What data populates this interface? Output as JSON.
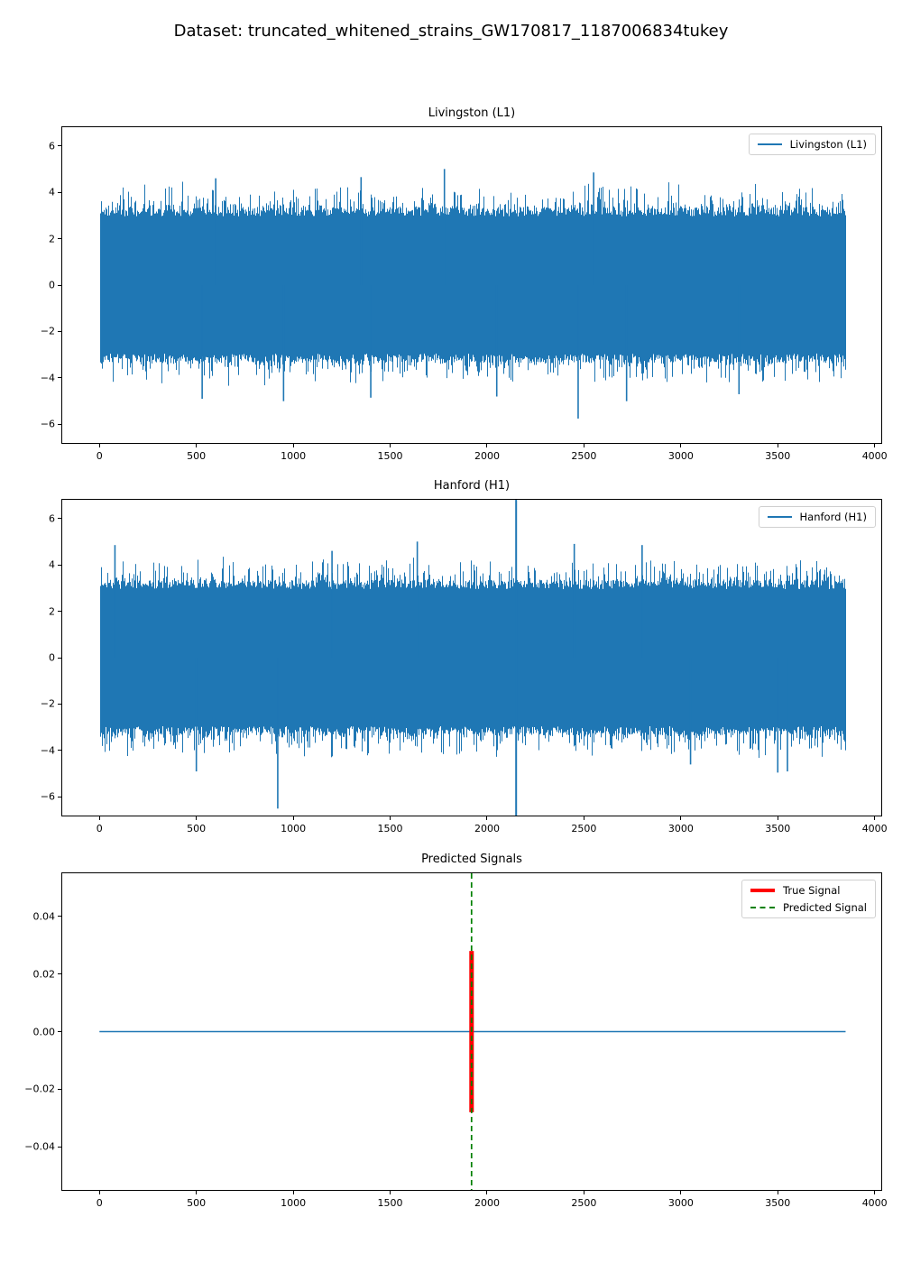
{
  "figure": {
    "title": "Dataset: truncated_whitened_strains_GW170817_1187006834tukey",
    "background": "#ffffff"
  },
  "colors": {
    "strain_blue": "#1f77b4",
    "true_signal_red": "#ff0000",
    "predicted_signal_green": "#008000",
    "axes_border": "#000000",
    "legend_border": "#d0d0d0"
  },
  "chart_data": [
    {
      "type": "line",
      "title": "Livingston (L1)",
      "xlabel": "",
      "ylabel": "",
      "xlim": [
        -192,
        4034
      ],
      "ylim": [
        -6.8,
        6.8
      ],
      "x_ticks": [
        0,
        500,
        1000,
        1500,
        2000,
        2500,
        3000,
        3500,
        4000
      ],
      "x_tick_labels": [
        "0",
        "500",
        "1000",
        "1500",
        "2000",
        "2500",
        "3000",
        "3500",
        "4000"
      ],
      "y_ticks": [
        6,
        4,
        2,
        0,
        -2,
        -4,
        -6
      ],
      "y_tick_labels": [
        "6",
        "4",
        "2",
        "0",
        "−2",
        "−4",
        "−6"
      ],
      "grid": false,
      "legend": {
        "position": "upper right",
        "entries": [
          "Livingston (L1)"
        ]
      },
      "series": [
        {
          "name": "Livingston (L1)",
          "color": "#1f77b4",
          "kind": "noise_band",
          "seed": 7,
          "x_start": 0,
          "x_end": 3850,
          "typical_envelope": 3.5,
          "peak_envelope": 4.4,
          "notable_spikes": [
            [
              1780,
              5.0
            ],
            [
              950,
              -5.0
            ],
            [
              2470,
              -5.75
            ],
            [
              2720,
              -5.0
            ],
            [
              530,
              -4.9
            ],
            [
              1400,
              -4.85
            ],
            [
              2550,
              4.85
            ],
            [
              600,
              4.6
            ],
            [
              3300,
              -4.7
            ],
            [
              2050,
              -4.8
            ],
            [
              1350,
              4.65
            ]
          ]
        }
      ]
    },
    {
      "type": "line",
      "title": "Hanford (H1)",
      "xlabel": "",
      "ylabel": "",
      "xlim": [
        -192,
        4034
      ],
      "ylim": [
        -6.8,
        6.8
      ],
      "x_ticks": [
        0,
        500,
        1000,
        1500,
        2000,
        2500,
        3000,
        3500,
        4000
      ],
      "x_tick_labels": [
        "0",
        "500",
        "1000",
        "1500",
        "2000",
        "2500",
        "3000",
        "3500",
        "4000"
      ],
      "y_ticks": [
        6,
        4,
        2,
        0,
        -2,
        -4,
        -6
      ],
      "y_tick_labels": [
        "6",
        "4",
        "2",
        "0",
        "−2",
        "−4",
        "−6"
      ],
      "grid": false,
      "legend": {
        "position": "upper right",
        "entries": [
          "Hanford (H1)"
        ]
      },
      "series": [
        {
          "name": "Hanford (H1)",
          "color": "#1f77b4",
          "kind": "noise_band",
          "seed": 13,
          "x_start": 0,
          "x_end": 3850,
          "typical_envelope": 3.5,
          "peak_envelope": 4.4,
          "glitch": {
            "x": 2150,
            "y_min": -6.8,
            "y_max": 6.8,
            "clipped_at_ylim": true
          },
          "notable_spikes": [
            [
              920,
              -6.5
            ],
            [
              1640,
              5.0
            ],
            [
              500,
              -4.9
            ],
            [
              2450,
              4.9
            ],
            [
              2800,
              4.85
            ],
            [
              3500,
              -4.95
            ],
            [
              1200,
              4.6
            ],
            [
              3050,
              -4.6
            ],
            [
              3550,
              -4.9
            ],
            [
              80,
              4.85
            ]
          ]
        }
      ]
    },
    {
      "type": "line",
      "title": "Predicted Signals",
      "xlabel": "",
      "ylabel": "",
      "xlim": [
        -192,
        4034
      ],
      "ylim": [
        -0.055,
        0.055
      ],
      "x_ticks": [
        0,
        500,
        1000,
        1500,
        2000,
        2500,
        3000,
        3500,
        4000
      ],
      "x_tick_labels": [
        "0",
        "500",
        "1000",
        "1500",
        "2000",
        "2500",
        "3000",
        "3500",
        "4000"
      ],
      "y_ticks": [
        0.04,
        0.02,
        0.0,
        -0.02,
        -0.04
      ],
      "y_tick_labels": [
        "0.04",
        "0.02",
        "0.00",
        "−0.02",
        "−0.04"
      ],
      "grid": false,
      "legend": {
        "position": "upper right",
        "entries": [
          "True Signal",
          "Predicted Signal"
        ]
      },
      "series": [
        {
          "name": "zero baseline",
          "color": "#1f77b4",
          "kind": "hline",
          "y": 0,
          "x_start": 0,
          "x_end": 3850
        },
        {
          "name": "True Signal",
          "color": "#ff0000",
          "kind": "vpulse",
          "x": 1920,
          "y_min": -0.028,
          "y_max": 0.028,
          "linewidth": 5
        },
        {
          "name": "Predicted Signal",
          "color": "#008000",
          "kind": "vline_dashed",
          "x": 1920,
          "full_height": true,
          "linewidth": 1.7
        }
      ]
    }
  ]
}
